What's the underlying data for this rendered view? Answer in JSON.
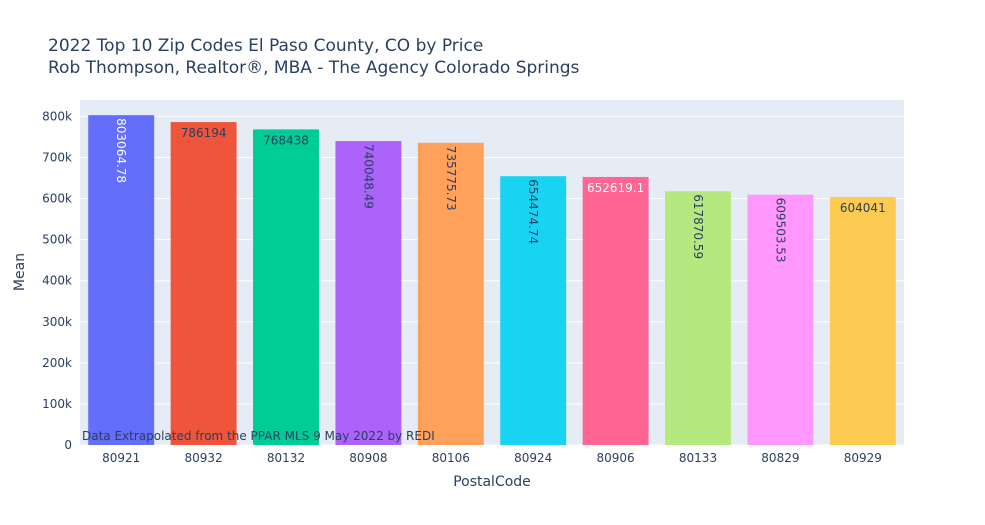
{
  "chart_data": {
    "type": "bar",
    "title": "2022 Top 10 Zip Codes El Paso County, CO by Price",
    "subtitle": "Rob Thompson, Realtor®, MBA - The Agency Colorado Springs",
    "xlabel": "PostalCode",
    "ylabel": "Mean",
    "ylim": [
      0,
      840000
    ],
    "yticks": [
      0,
      100000,
      200000,
      300000,
      400000,
      500000,
      600000,
      700000,
      800000
    ],
    "ytick_labels": [
      "0",
      "100k",
      "200k",
      "300k",
      "400k",
      "500k",
      "600k",
      "700k",
      "800k"
    ],
    "categories": [
      "80921",
      "80932",
      "80132",
      "80908",
      "80106",
      "80924",
      "80906",
      "80133",
      "80829",
      "80929"
    ],
    "values": [
      803064.78,
      786194,
      768438,
      740048.49,
      735775.73,
      654474.74,
      652619.1,
      617870.59,
      609503.53,
      604041
    ],
    "value_labels": [
      "803064.78",
      "786194",
      "768438",
      "740048.49",
      "735775.73",
      "654474.74",
      "652619.1",
      "617870.59",
      "609503.53",
      "604041"
    ],
    "colors": [
      "#636efa",
      "#EF553B",
      "#00cc96",
      "#ab63fa",
      "#FFA15A",
      "#19d3f3",
      "#FF6692",
      "#B6E880",
      "#FF97FF",
      "#FECB52"
    ],
    "label_colors": [
      "#ffffff",
      "#2a3f5f",
      "#2a3f5f",
      "#2a3f5f",
      "#2a3f5f",
      "#2a3f5f",
      "#ffffff",
      "#2a3f5f",
      "#2a3f5f",
      "#2a3f5f"
    ],
    "label_rotated": [
      true,
      false,
      false,
      true,
      true,
      true,
      false,
      true,
      true,
      false
    ],
    "annotation": "Data Extrapolated from the PPAR MLS 9 May 2022 by REDI",
    "grid": true,
    "plot_bg": "#e5ecf6"
  }
}
